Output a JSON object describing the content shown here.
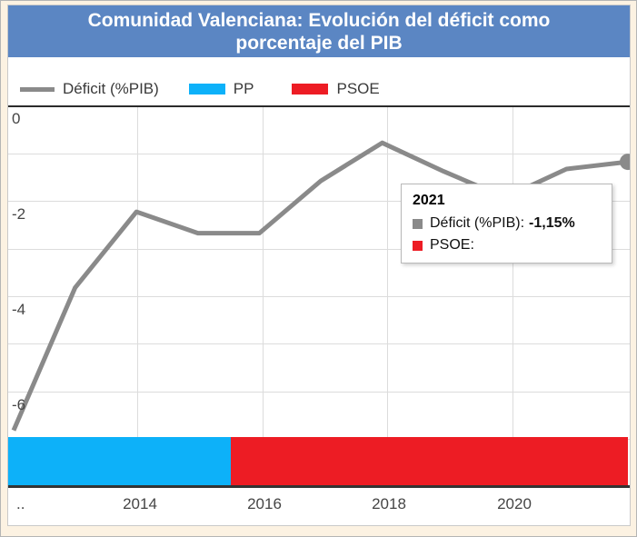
{
  "header": {
    "title": "Comunidad Valenciana: Evolución del déficit como porcentaje del PIB"
  },
  "legend": {
    "items": [
      {
        "label": "Déficit (%PIB)",
        "type": "line",
        "color": "#8a8a8a"
      },
      {
        "label": "PP",
        "type": "box",
        "color": "#0db1f9"
      },
      {
        "label": "PSOE",
        "type": "box",
        "color": "#ed1c24"
      }
    ]
  },
  "tooltip": {
    "title": "2021",
    "rows": [
      {
        "label": "Déficit (%PIB):",
        "value": "-1,15%",
        "color": "#8a8a8a"
      },
      {
        "label": "PSOE:",
        "value": "",
        "color": "#ed1c24"
      }
    ]
  },
  "chart_data": {
    "type": "line",
    "title": "Comunidad Valenciana: Evolución del déficit como porcentaje del PIB",
    "x": [
      2011,
      2012,
      2013,
      2014,
      2015,
      2016,
      2017,
      2018,
      2019,
      2020,
      2021
    ],
    "series": [
      {
        "name": "Déficit (%PIB)",
        "values": [
          -6.8,
          -3.8,
          -2.2,
          -2.65,
          -2.65,
          -1.55,
          -0.75,
          -1.35,
          -1.9,
          -1.3,
          -1.15
        ],
        "color": "#8a8a8a"
      }
    ],
    "hover_point": {
      "x": 2021,
      "series": "Déficit (%PIB)",
      "value_label": "-1,15%"
    },
    "governments": [
      {
        "party": "PP",
        "from": "2012",
        "to": "mid-2015",
        "color": "#0db1f9"
      },
      {
        "party": "PSOE",
        "from": "mid-2015",
        "to": "2021",
        "color": "#ed1c24"
      }
    ],
    "ylabel": "",
    "xlabel": "",
    "ylim": [
      -7.95,
      0
    ],
    "y_tick_labels": [
      "0",
      "-2",
      "-4",
      "-6"
    ],
    "x_tick_labels": [
      "..",
      "2014",
      "2016",
      "2018",
      "2020"
    ],
    "grid": true,
    "legend_position": "top"
  }
}
